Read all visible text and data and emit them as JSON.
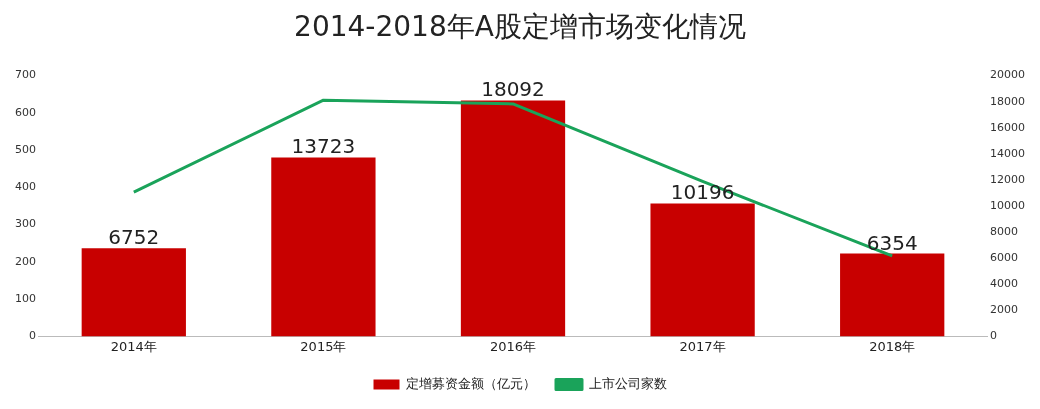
{
  "chart_data": {
    "type": "bar",
    "title": "2014-2018年A股定增市场变化情况",
    "categories": [
      "2014年",
      "2015年",
      "2016年",
      "2017年",
      "2018年"
    ],
    "series": [
      {
        "name": "定增募资金额（亿元）",
        "axis": "y2",
        "color": "#c80000",
        "values": [
          6752,
          13723,
          18092,
          10196,
          6354
        ],
        "value_labels": [
          "6752",
          "13723",
          "18092",
          "10196",
          "6354"
        ]
      },
      {
        "name": "上市公司家数",
        "type": "line",
        "axis": "y",
        "color": "#1aa35a",
        "values": [
          387,
          634,
          624,
          416,
          216
        ]
      }
    ],
    "ylim": [
      0,
      700
    ],
    "yticks": [
      0,
      100,
      200,
      300,
      400,
      500,
      600,
      700
    ],
    "y2lim": [
      0,
      20000
    ],
    "y2ticks": [
      0,
      2000,
      4000,
      6000,
      8000,
      10000,
      12000,
      14000,
      16000,
      18000,
      20000
    ],
    "grid": false,
    "legend": "bottom",
    "marker": "none",
    "line_style": "solid"
  }
}
